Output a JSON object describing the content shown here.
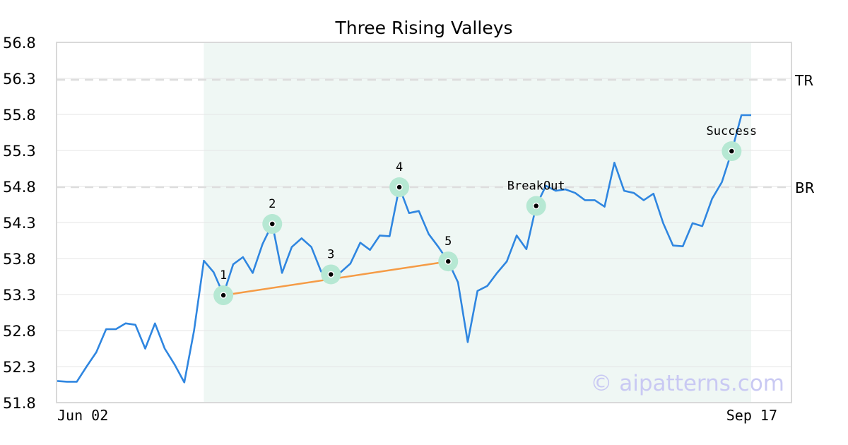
{
  "chart_data": {
    "type": "line",
    "title": "Three Rising Valleys",
    "xlabel": "",
    "ylabel": "",
    "ylim": [
      51.8,
      56.8
    ],
    "yticks": [
      "51.8",
      "52.3",
      "52.8",
      "53.3",
      "53.8",
      "54.3",
      "54.8",
      "55.3",
      "55.8",
      "56.3",
      "56.8"
    ],
    "x_tick_labels": [
      {
        "index": 0,
        "label": "Jun 02"
      },
      {
        "index": 71,
        "label": "Sep 17"
      }
    ],
    "grid": true,
    "pattern_range": [
      15,
      71
    ],
    "series": [
      {
        "values": [
          52.1,
          52.09,
          52.09,
          52.3,
          52.5,
          52.82,
          52.82,
          52.9,
          52.88,
          52.55,
          52.9,
          52.55,
          52.33,
          52.08,
          52.8,
          53.77,
          53.61,
          53.3,
          53.72,
          53.82,
          53.6,
          54.0,
          54.28,
          53.6,
          53.96,
          54.08,
          53.96,
          53.62,
          53.58,
          53.61,
          53.73,
          54.02,
          53.92,
          54.12,
          54.11,
          54.79,
          54.43,
          54.46,
          54.14,
          53.96,
          53.76,
          53.47,
          52.64,
          53.35,
          53.42,
          53.6,
          53.76,
          54.12,
          53.93,
          54.53,
          54.81,
          54.74,
          54.76,
          54.71,
          54.61,
          54.61,
          54.52,
          55.13,
          54.74,
          54.71,
          54.61,
          54.7,
          54.29,
          53.98,
          53.97,
          54.29,
          54.25,
          54.63,
          54.86,
          55.28,
          55.79,
          55.79
        ]
      }
    ],
    "levels": [
      {
        "label": "TR",
        "value": 56.28
      },
      {
        "label": "BR",
        "value": 54.79
      }
    ],
    "points": [
      {
        "label": "1",
        "index": 17,
        "value": 53.29
      },
      {
        "label": "2",
        "index": 22,
        "value": 54.28
      },
      {
        "label": "3",
        "index": 28,
        "value": 53.58
      },
      {
        "label": "4",
        "index": 35,
        "value": 54.79
      },
      {
        "label": "5",
        "index": 40,
        "value": 53.76
      },
      {
        "label": "BreakOut",
        "index": 49,
        "value": 54.53
      },
      {
        "label": "Success",
        "index": 69,
        "value": 55.29
      }
    ],
    "trendline": {
      "from_point": 0,
      "to_point": 4
    },
    "colors": {
      "line": "#2f86e0",
      "trendline": "#f59b45",
      "marker_halo": "#b6e8d3",
      "highlight": "#eff7f4",
      "level_line": "#dddddd",
      "grid": "#e6e6e6",
      "frame": "#d9d9d9"
    }
  },
  "watermark": "© aipatterns.com"
}
